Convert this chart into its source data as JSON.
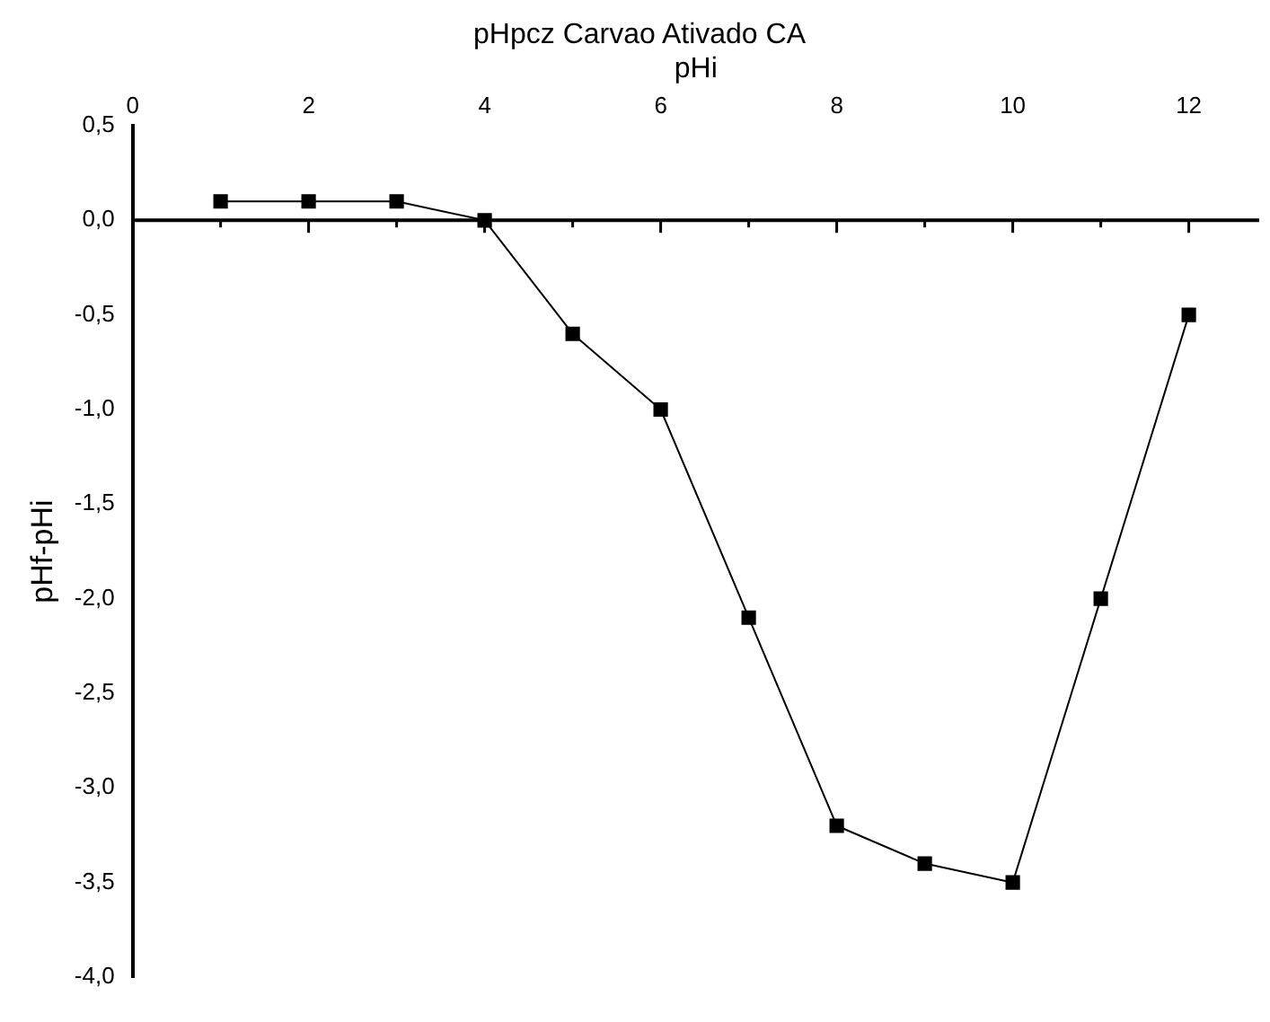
{
  "chart_data": {
    "type": "line",
    "title": "pHpcz Carvao Ativado CA",
    "xlabel": "pHi",
    "ylabel": "pHf-pHi",
    "x": [
      1,
      2,
      3,
      4,
      5,
      6,
      7,
      8,
      9,
      10,
      11,
      12
    ],
    "series": [
      {
        "color": "#000000",
        "values": [
          0.1,
          0.1,
          0.1,
          0,
          -0.6,
          -1.0,
          -2.1,
          -3.2,
          -3.4,
          -3.5,
          -2.0,
          -0.5
        ]
      }
    ],
    "xlim": [
      0,
      12.8
    ],
    "xticks": [
      0,
      2,
      4,
      6,
      8,
      10,
      12
    ],
    "ylim": [
      -4,
      0.5
    ],
    "yticks": [
      {
        "value": -4,
        "label": "-4,0"
      },
      {
        "value": -3.5,
        "label": "-3,5"
      },
      {
        "value": -3,
        "label": "-3,0"
      },
      {
        "value": -2.5,
        "label": "-2,5"
      },
      {
        "value": -2,
        "label": "-2,0"
      },
      {
        "value": -1.5,
        "label": "-1,5"
      },
      {
        "value": -1,
        "label": "-1,0"
      },
      {
        "value": -0.5,
        "label": "-0,5"
      },
      {
        "value": 0,
        "label": "0,0"
      },
      {
        "value": 0.5,
        "label": "0,5"
      }
    ],
    "ref_lines": [
      {
        "axis": "y",
        "value": 0
      }
    ],
    "grid": false,
    "legend": false,
    "marker": "square",
    "line_style": "solid"
  }
}
